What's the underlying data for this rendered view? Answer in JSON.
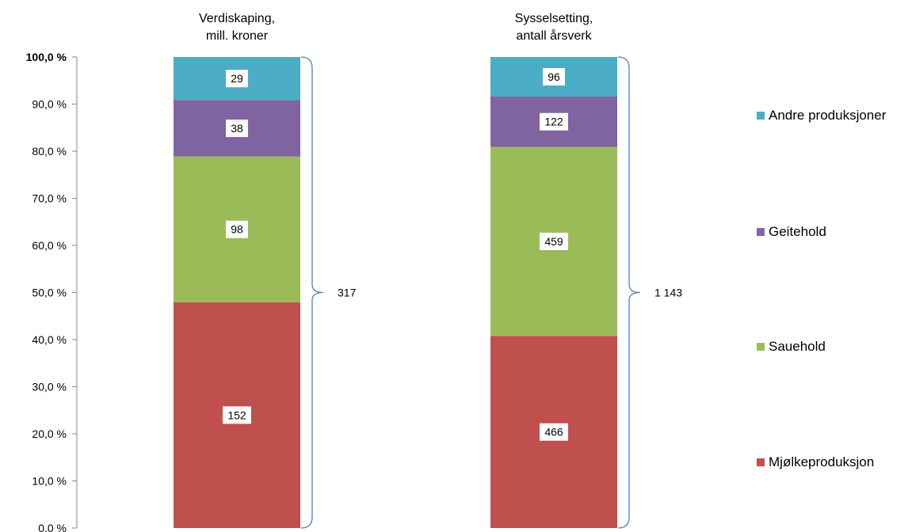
{
  "chart_data": {
    "type": "bar",
    "stacked": true,
    "normalized": true,
    "ylim": [
      0,
      100
    ],
    "grid": false,
    "legend_position": "right",
    "y_ticks": [
      "0,0 %",
      "10,0 %",
      "20,0 %",
      "30,0 %",
      "40,0 %",
      "50,0 %",
      "60,0 %",
      "70,0 %",
      "80,0 %",
      "90,0 %",
      "100,0 %"
    ],
    "categories": [
      {
        "title_lines": [
          "Verdiskaping,",
          "mill. kroner"
        ],
        "total_label": "317"
      },
      {
        "title_lines": [
          "Sysselsetting,",
          "antall årsverk"
        ],
        "total_label": "1 143"
      }
    ],
    "series": [
      {
        "name": "Mjølkeproduksjon",
        "color": "#c0504d",
        "values": [
          152,
          466
        ],
        "labels": [
          "152",
          "466"
        ]
      },
      {
        "name": "Sauehold",
        "color": "#9bbb59",
        "values": [
          98,
          459
        ],
        "labels": [
          "98",
          "459"
        ]
      },
      {
        "name": "Geitehold",
        "color": "#8064a2",
        "values": [
          38,
          122
        ],
        "labels": [
          "38",
          "122"
        ]
      },
      {
        "name": "Andre produksjoner",
        "color": "#4bacc6",
        "values": [
          29,
          96
        ],
        "labels": [
          "29",
          "96"
        ]
      }
    ],
    "legend_order": [
      "Andre produksjoner",
      "Geitehold",
      "Sauehold",
      "Mjølkeproduksjon"
    ]
  }
}
